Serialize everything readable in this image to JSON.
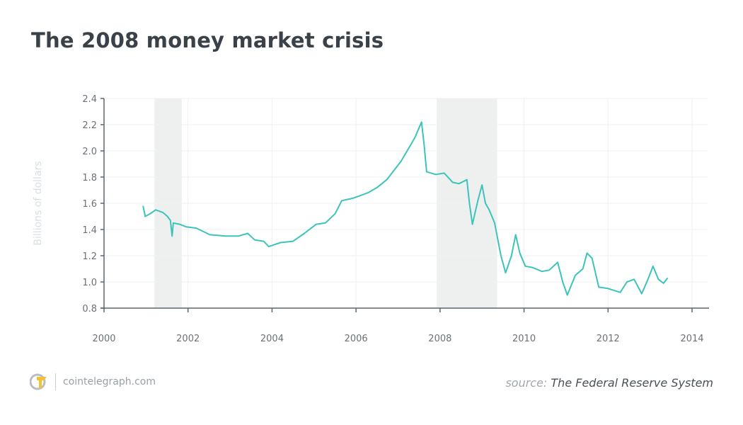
{
  "title": "The 2008 money market crisis",
  "footer": {
    "site": "cointelegraph.com",
    "source_prefix": "source:",
    "source_name": "The Federal Reserve System",
    "logo_icon": "cointelegraph-logo-icon"
  },
  "colors": {
    "line": "#3cc4b9",
    "recession": "#eef0f0",
    "axis": "#5f656c",
    "grid": "#eef0f2"
  },
  "chart_data": {
    "type": "line",
    "title": "The 2008 money market crisis",
    "xlabel": "",
    "ylabel": "Billions of dollars",
    "xlim": [
      2000,
      2014
    ],
    "ylim": [
      0.8,
      2.4
    ],
    "x_ticks": [
      "2000",
      "2002",
      "2004",
      "2006",
      "2008",
      "2010",
      "2012",
      "2014"
    ],
    "y_ticks": [
      "0.8",
      "1.0",
      "1.2",
      "1.4",
      "1.6",
      "1.8",
      "2.0",
      "2.2",
      "2.4"
    ],
    "grid": true,
    "shaded_periods": [
      [
        2001.2,
        2001.85
      ],
      [
        2007.92,
        2009.36
      ]
    ],
    "series": [
      {
        "x": [
          2000.93,
          2000.98,
          2001.1,
          2001.23,
          2001.4,
          2001.51,
          2001.58,
          2001.62,
          2001.65,
          2001.8,
          2001.96,
          2002.2,
          2002.52,
          2002.9,
          2003.2,
          2003.42,
          2003.59,
          2003.8,
          2003.92,
          2004.2,
          2004.5,
          2004.77,
          2005.05,
          2005.27,
          2005.5,
          2005.66,
          2005.94,
          2006.28,
          2006.5,
          2006.73,
          2007.07,
          2007.4,
          2007.56,
          2007.62,
          2007.68,
          2007.9,
          2008.1,
          2008.3,
          2008.45,
          2008.64,
          2008.7,
          2008.77,
          2008.9,
          2009.0,
          2009.08,
          2009.17,
          2009.3,
          2009.45,
          2009.56,
          2009.7,
          2009.8,
          2009.9,
          2010.03,
          2010.2,
          2010.43,
          2010.6,
          2010.8,
          2010.92,
          2011.03,
          2011.22,
          2011.4,
          2011.5,
          2011.62,
          2011.78,
          2012.0,
          2012.29,
          2012.45,
          2012.62,
          2012.8,
          2012.95,
          2013.07,
          2013.2,
          2013.32,
          2013.42
        ],
        "y": [
          1.58,
          1.5,
          1.52,
          1.55,
          1.53,
          1.5,
          1.47,
          1.35,
          1.45,
          1.44,
          1.42,
          1.41,
          1.36,
          1.35,
          1.35,
          1.37,
          1.32,
          1.31,
          1.27,
          1.3,
          1.31,
          1.37,
          1.44,
          1.45,
          1.52,
          1.62,
          1.64,
          1.68,
          1.72,
          1.78,
          1.92,
          2.1,
          2.22,
          2.05,
          1.84,
          1.82,
          1.83,
          1.76,
          1.75,
          1.78,
          1.6,
          1.44,
          1.62,
          1.74,
          1.6,
          1.55,
          1.45,
          1.2,
          1.07,
          1.2,
          1.36,
          1.22,
          1.12,
          1.11,
          1.08,
          1.09,
          1.15,
          1.0,
          0.9,
          1.05,
          1.1,
          1.22,
          1.18,
          0.96,
          0.95,
          0.92,
          1.0,
          1.02,
          0.91,
          1.02,
          1.12,
          1.02,
          0.99,
          1.03
        ]
      }
    ]
  }
}
